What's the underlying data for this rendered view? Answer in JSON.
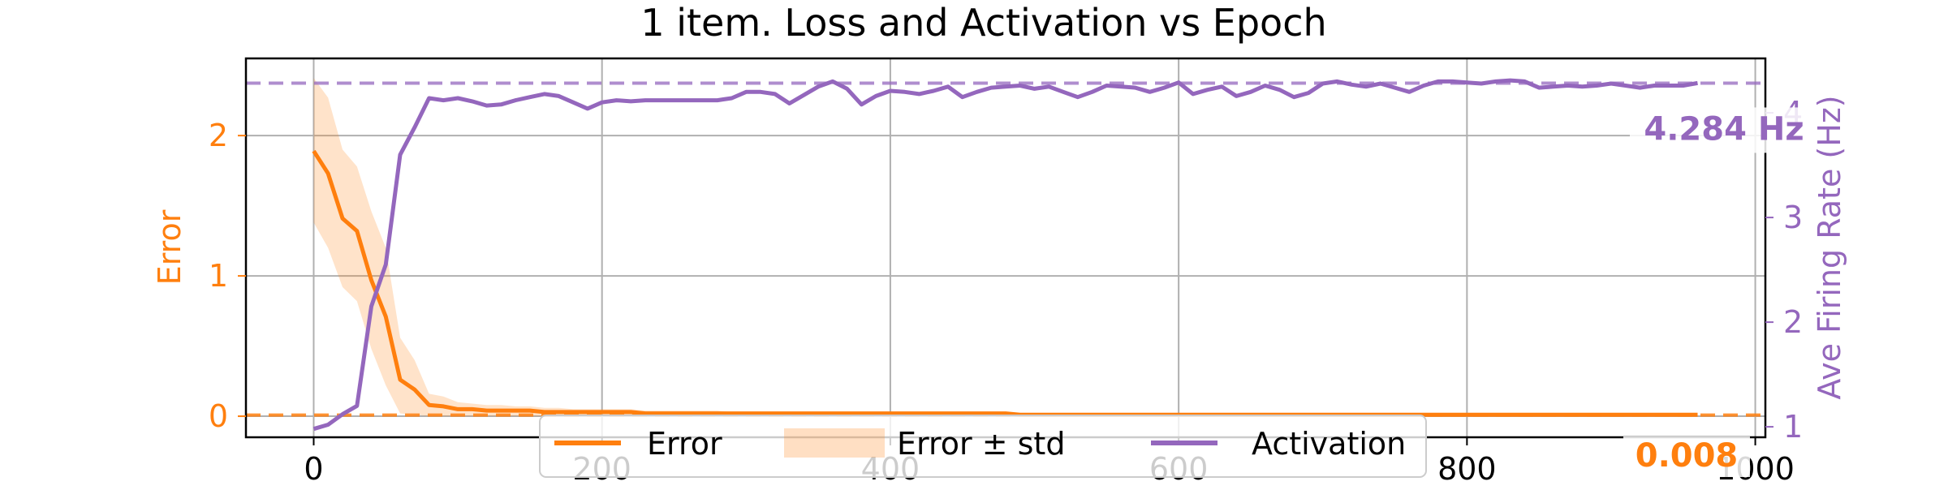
{
  "chart_data": {
    "type": "line",
    "title": "1 item. Loss and Activation vs Epoch",
    "xlabel": "",
    "xlim": [
      -47,
      1007
    ],
    "x_ticks": [
      0,
      200,
      400,
      600,
      800,
      1000
    ],
    "x_tick_labels": [
      "0",
      "200",
      "400",
      "600",
      "800",
      "1000"
    ],
    "grid": true,
    "left_axis": {
      "label": "Error",
      "color": "#ff7f0e",
      "ylim": [
        -0.15,
        2.55
      ],
      "ticks": [
        0,
        1,
        2
      ],
      "tick_labels": [
        "0",
        "1",
        "2"
      ]
    },
    "right_axis": {
      "label": "Ave Firing Rate (Hz)",
      "color": "#9467bd",
      "ylim": [
        0.9,
        4.52
      ],
      "ticks": [
        1,
        2,
        3,
        4
      ],
      "tick_labels": [
        "1",
        "2",
        "3",
        "4"
      ]
    },
    "x": [
      0,
      10,
      20,
      30,
      40,
      50,
      60,
      70,
      80,
      90,
      100,
      110,
      120,
      130,
      140,
      150,
      160,
      170,
      180,
      190,
      200,
      210,
      220,
      230,
      240,
      250,
      260,
      270,
      280,
      290,
      300,
      310,
      320,
      330,
      340,
      350,
      360,
      370,
      380,
      390,
      400,
      410,
      420,
      430,
      440,
      450,
      460,
      470,
      480,
      490,
      500,
      510,
      520,
      530,
      540,
      550,
      560,
      570,
      580,
      590,
      600,
      610,
      620,
      630,
      640,
      650,
      660,
      670,
      680,
      690,
      700,
      710,
      720,
      730,
      740,
      750,
      760,
      770,
      780,
      790,
      800,
      810,
      820,
      830,
      840,
      850,
      860,
      870,
      880,
      890,
      900,
      910,
      920,
      930,
      940,
      950,
      960
    ],
    "series": [
      {
        "name": "Error",
        "axis": "left",
        "color": "#ff7f0e",
        "values": [
          1.89,
          1.73,
          1.41,
          1.32,
          0.97,
          0.71,
          0.26,
          0.19,
          0.08,
          0.07,
          0.05,
          0.05,
          0.04,
          0.04,
          0.04,
          0.04,
          0.03,
          0.03,
          0.03,
          0.03,
          0.03,
          0.03,
          0.03,
          0.02,
          0.02,
          0.02,
          0.02,
          0.02,
          0.02,
          0.02,
          0.02,
          0.02,
          0.02,
          0.02,
          0.02,
          0.02,
          0.02,
          0.02,
          0.02,
          0.02,
          0.02,
          0.02,
          0.02,
          0.02,
          0.02,
          0.02,
          0.02,
          0.02,
          0.02,
          0.01,
          0.01,
          0.01,
          0.01,
          0.01,
          0.01,
          0.01,
          0.01,
          0.01,
          0.01,
          0.01,
          0.01,
          0.01,
          0.01,
          0.01,
          0.01,
          0.01,
          0.01,
          0.01,
          0.01,
          0.01,
          0.01,
          0.01,
          0.01,
          0.01,
          0.01,
          0.01,
          0.01,
          0.01,
          0.01,
          0.01,
          0.01,
          0.01,
          0.01,
          0.01,
          0.01,
          0.01,
          0.01,
          0.01,
          0.01,
          0.01,
          0.01,
          0.01,
          0.01,
          0.01,
          0.01,
          0.01,
          0.01
        ]
      },
      {
        "name": "Error ± std",
        "axis": "left",
        "color": "#ff7f0e",
        "kind": "band",
        "lower": [
          1.38,
          1.2,
          0.92,
          0.82,
          0.48,
          0.22,
          0.02,
          0.01,
          0.0,
          0.0,
          0.0,
          0.0,
          0.0,
          0.0,
          0.0,
          0.0,
          0.0,
          0.0,
          0.0,
          0.0,
          0.0,
          0.0,
          0.0,
          0.0,
          0.0,
          0.0,
          0.0,
          0.0,
          0.0,
          0.0,
          0.0,
          0.0,
          0.0,
          0.0,
          0.0,
          0.0,
          0.0,
          0.0,
          0.0,
          0.0,
          0.0,
          0.0,
          0.0,
          0.0,
          0.0,
          0.0,
          0.0,
          0.0,
          0.0,
          0.0,
          0.0,
          0.0,
          0.0,
          0.0,
          0.0,
          0.0,
          0.0,
          0.0,
          0.0,
          0.0,
          0.0,
          0.0,
          0.0,
          0.0,
          0.0,
          0.0,
          0.0,
          0.0,
          0.0,
          0.0,
          0.0,
          0.0,
          0.0,
          0.0,
          0.0,
          0.0,
          0.0,
          0.0,
          0.0,
          0.0,
          0.0,
          0.0,
          0.0,
          0.0,
          0.0,
          0.0,
          0.0,
          0.0,
          0.0,
          0.0,
          0.0,
          0.0,
          0.0,
          0.0,
          0.0,
          0.0,
          0.0
        ],
        "upper": [
          2.41,
          2.27,
          1.9,
          1.78,
          1.46,
          1.2,
          0.56,
          0.4,
          0.16,
          0.14,
          0.1,
          0.09,
          0.08,
          0.08,
          0.07,
          0.07,
          0.06,
          0.06,
          0.05,
          0.05,
          0.05,
          0.05,
          0.05,
          0.04,
          0.04,
          0.04,
          0.04,
          0.04,
          0.04,
          0.03,
          0.03,
          0.03,
          0.03,
          0.03,
          0.03,
          0.03,
          0.03,
          0.03,
          0.03,
          0.03,
          0.03,
          0.03,
          0.03,
          0.03,
          0.03,
          0.03,
          0.03,
          0.03,
          0.03,
          0.02,
          0.02,
          0.02,
          0.02,
          0.02,
          0.02,
          0.02,
          0.02,
          0.02,
          0.02,
          0.02,
          0.02,
          0.02,
          0.02,
          0.02,
          0.02,
          0.02,
          0.02,
          0.02,
          0.02,
          0.02,
          0.02,
          0.02,
          0.02,
          0.02,
          0.02,
          0.02,
          0.02,
          0.02,
          0.02,
          0.02,
          0.02,
          0.02,
          0.02,
          0.02,
          0.02,
          0.02,
          0.02,
          0.02,
          0.02,
          0.02,
          0.02,
          0.02,
          0.02,
          0.02,
          0.02,
          0.02,
          0.02
        ]
      },
      {
        "name": "Activation",
        "axis": "right",
        "color": "#9467bd",
        "values": [
          0.98,
          1.02,
          1.12,
          1.2,
          2.15,
          2.55,
          3.6,
          3.86,
          4.14,
          4.12,
          4.14,
          4.11,
          4.07,
          4.08,
          4.12,
          4.15,
          4.18,
          4.16,
          4.1,
          4.04,
          4.1,
          4.12,
          4.11,
          4.12,
          4.12,
          4.12,
          4.12,
          4.12,
          4.12,
          4.14,
          4.2,
          4.2,
          4.18,
          4.09,
          4.17,
          4.25,
          4.3,
          4.23,
          4.08,
          4.16,
          4.21,
          4.2,
          4.18,
          4.21,
          4.25,
          4.15,
          4.2,
          4.24,
          4.25,
          4.26,
          4.23,
          4.25,
          4.2,
          4.15,
          4.2,
          4.26,
          4.25,
          4.24,
          4.2,
          4.24,
          4.29,
          4.18,
          4.22,
          4.25,
          4.16,
          4.2,
          4.26,
          4.22,
          4.15,
          4.19,
          4.28,
          4.3,
          4.27,
          4.25,
          4.28,
          4.24,
          4.2,
          4.26,
          4.3,
          4.3,
          4.29,
          4.28,
          4.3,
          4.31,
          4.3,
          4.24,
          4.25,
          4.26,
          4.25,
          4.26,
          4.28,
          4.26,
          4.24,
          4.26,
          4.26,
          4.26,
          4.284
        ]
      }
    ],
    "reference_lines": [
      {
        "axis": "left",
        "value": 0.008,
        "color": "#ff7f0e",
        "style": "dashed"
      },
      {
        "axis": "right",
        "value": 4.284,
        "color": "#9467bd",
        "style": "dashed"
      }
    ],
    "annotations": [
      {
        "text": "4.284 Hz",
        "color": "#9467bd",
        "axis": "right",
        "value": 4.284
      },
      {
        "text": "0.008",
        "color": "#ff7f0e",
        "axis": "left",
        "value": 0.008
      }
    ],
    "legend": {
      "placement": "lower-center",
      "entries": [
        {
          "label": "Error",
          "kind": "line",
          "color": "#ff7f0e"
        },
        {
          "label": "Error ± std",
          "kind": "band",
          "color": "#ff7f0e"
        },
        {
          "label": "Activation",
          "kind": "line",
          "color": "#9467bd"
        }
      ]
    }
  }
}
